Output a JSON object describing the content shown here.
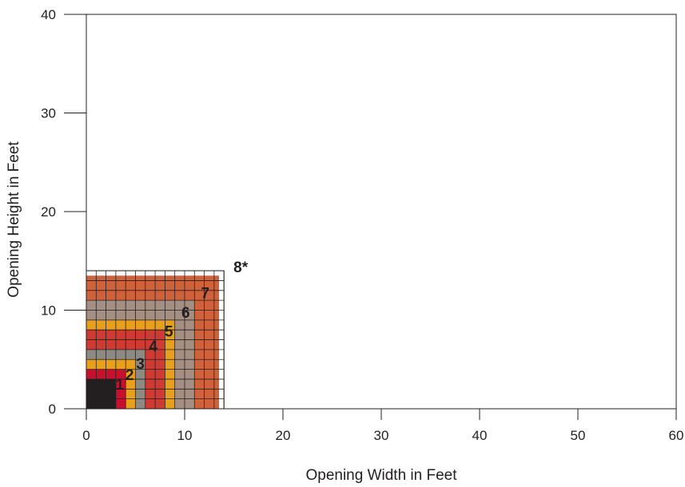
{
  "chart_data": {
    "type": "heatmap",
    "title": "",
    "xlabel": "Opening Width in Feet",
    "ylabel": "Opening Height in Feet",
    "xlim": [
      0,
      60
    ],
    "ylim": [
      0,
      40
    ],
    "x_ticks": [
      "0",
      "10",
      "20",
      "30",
      "40",
      "50",
      "60"
    ],
    "y_ticks": [
      "0",
      "10",
      "20",
      "30",
      "40"
    ],
    "grid_cell_ft": 1,
    "zones": [
      {
        "label": "1",
        "max_width": 3,
        "max_height": 3,
        "color": "#231f20"
      },
      {
        "label": "2",
        "max_width": 4,
        "max_height": 4,
        "color": "#c8102e"
      },
      {
        "label": "3",
        "max_width": 5,
        "max_height": 5,
        "color": "#e8a01c"
      },
      {
        "label": "4",
        "max_width": 6,
        "max_height": 6,
        "color": "#8c8a83"
      },
      {
        "label": "5",
        "max_width": 8,
        "max_height": 8,
        "color": "#cf3a32"
      },
      {
        "label": "6",
        "max_width": 9,
        "max_height": 9,
        "color": "#e8a01c"
      },
      {
        "label": "7",
        "max_width": 11,
        "max_height": 11,
        "color": "#a48f82"
      },
      {
        "label": "",
        "max_width": 13.5,
        "max_height": 13.5,
        "color": "#d0623b"
      },
      {
        "label": "8*",
        "max_width": 14,
        "max_height": 14,
        "color": "#ffffff"
      }
    ],
    "label_positions": [
      {
        "label": "1",
        "x": 3.4,
        "y": 2.5
      },
      {
        "label": "2",
        "x": 4.4,
        "y": 3.5
      },
      {
        "label": "3",
        "x": 5.5,
        "y": 4.6
      },
      {
        "label": "4",
        "x": 6.8,
        "y": 6.4
      },
      {
        "label": "5",
        "x": 8.4,
        "y": 7.9
      },
      {
        "label": "6",
        "x": 10.1,
        "y": 9.8
      },
      {
        "label": "7",
        "x": 12.1,
        "y": 11.8
      },
      {
        "label": "8*",
        "x": 15.7,
        "y": 14.4
      }
    ]
  }
}
